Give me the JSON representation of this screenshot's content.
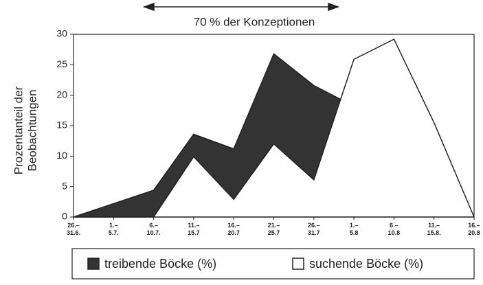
{
  "chart_data": {
    "type": "area",
    "annotation": "70 % der Konzeptionen",
    "ylabel": [
      "Prozentanteil der",
      "Beobachtungen"
    ],
    "categories": [
      "26.–31.6.",
      "1.–5.7.",
      "6.–10.7.",
      "11.–15.7",
      "16.–20.7",
      "21.–25.7",
      "26.–31.7",
      "1.–5.8",
      "6.–10.8",
      "11.–15.8.",
      "16.–20.8"
    ],
    "series": [
      {
        "name": "treibende Böcke (%)",
        "color": "#333333",
        "values": [
          0,
          2.2,
          4.4,
          13.6,
          11.2,
          26.8,
          21.6,
          18.2,
          null,
          null,
          null
        ]
      },
      {
        "name": "suchende Böcke (%)",
        "color": "#ffffff",
        "values": [
          0,
          0,
          0,
          9.9,
          2.9,
          12,
          6.1,
          25.9,
          29.2,
          15.5,
          0
        ]
      }
    ],
    "ylim": [
      0,
      30
    ],
    "yticks": [
      0,
      5,
      10,
      15,
      20,
      25,
      30
    ]
  }
}
